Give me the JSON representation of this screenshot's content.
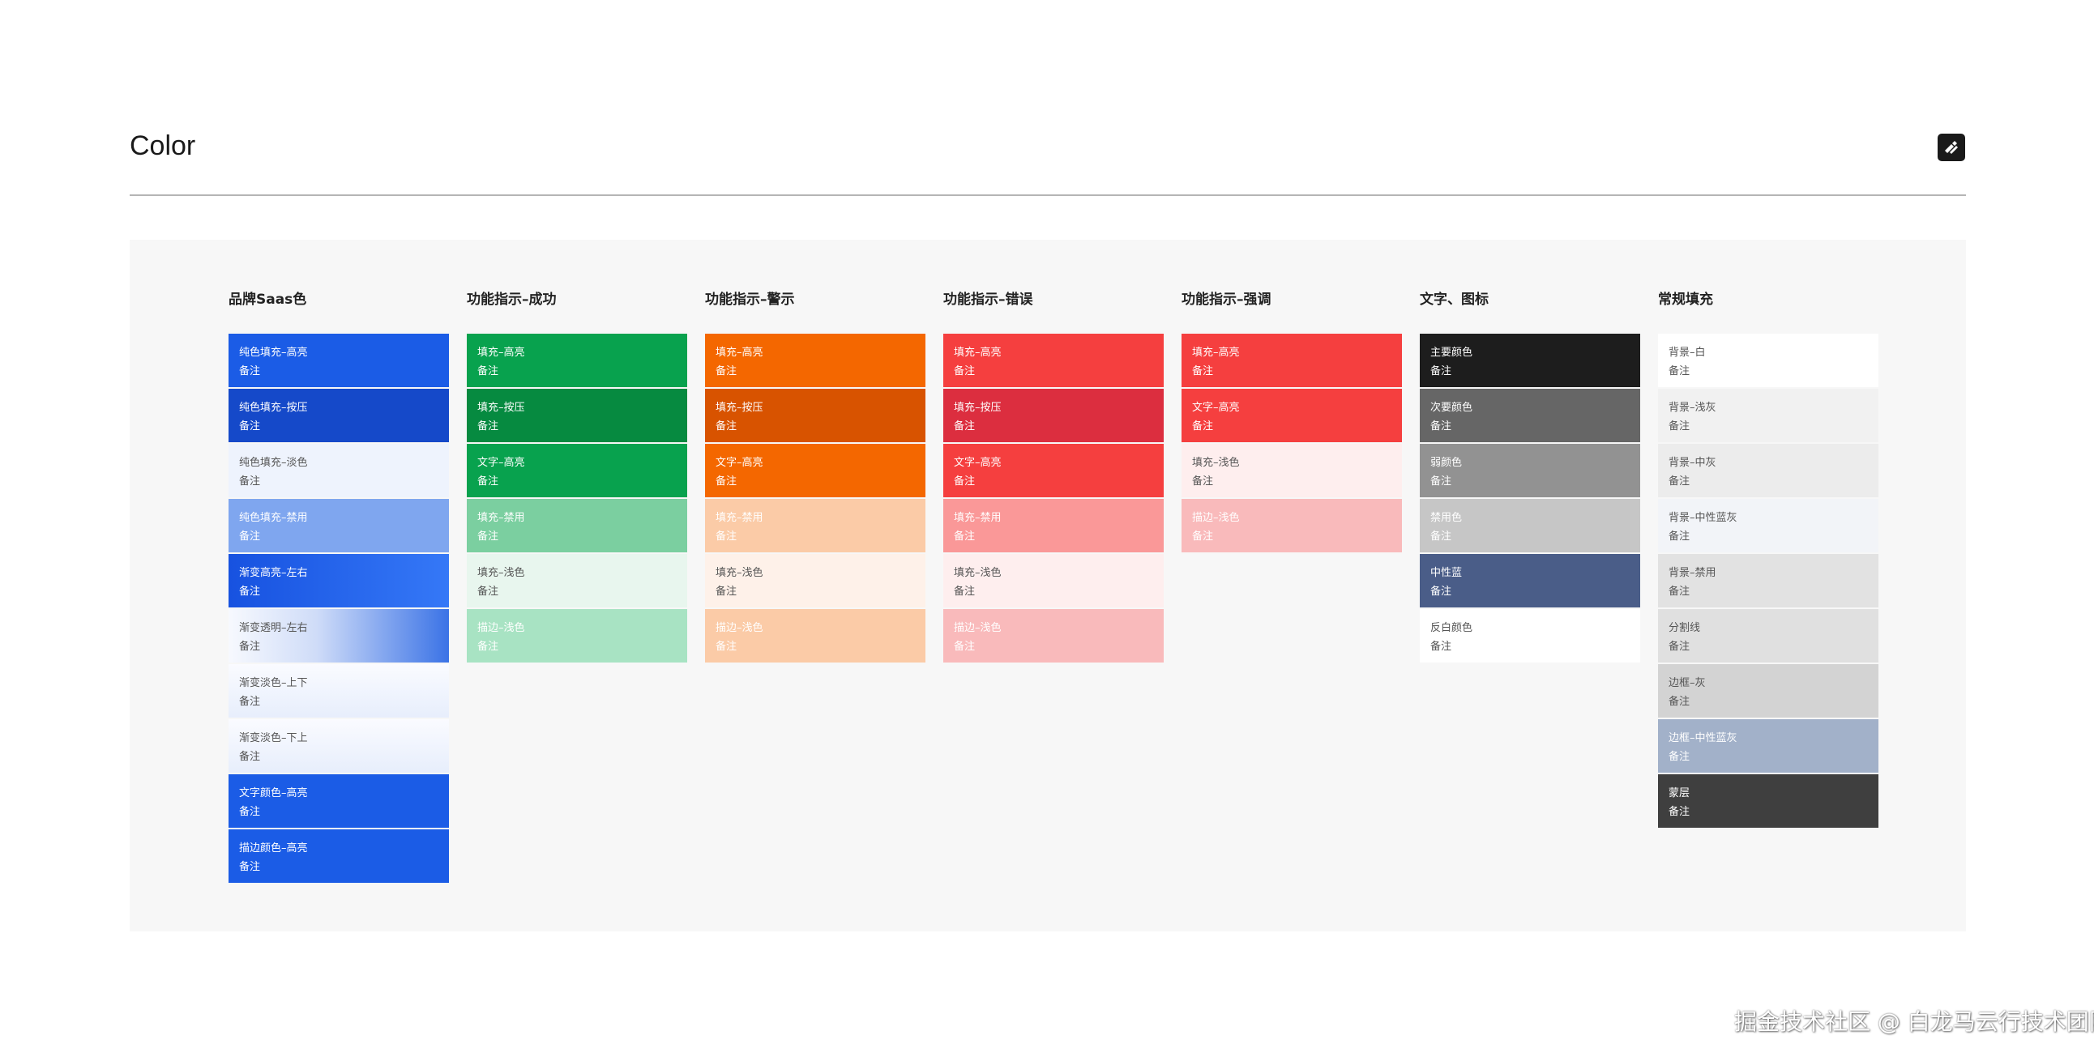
{
  "header": {
    "title": "Color",
    "logo_icon": "edit-logo-icon"
  },
  "watermark": "掘金技术社区 @ 白龙马云行技术团队",
  "columns": [
    {
      "title": "品牌Saas色",
      "swatches": [
        {
          "name": "纯色填充–高亮",
          "note": "备注",
          "color": "#1b5ce6"
        },
        {
          "name": "纯色填充–按压",
          "note": "备注",
          "color": "#1549c9"
        },
        {
          "name": "纯色填充–淡色",
          "note": "备注",
          "color": "#eef3fd",
          "text": "dark"
        },
        {
          "name": "纯色填充–禁用",
          "note": "备注",
          "color": "#7fa6ef"
        },
        {
          "name": "渐变高亮–左右",
          "note": "备注",
          "color": "linear-gradient(90deg, #1752e0 0%, #3578f7 100%)"
        },
        {
          "name": "渐变透明–左右",
          "note": "备注",
          "color": "linear-gradient(90deg, #f7f9fe 0%, #cfdcf8 40%, #3b73e6 100%)",
          "text": "dark"
        },
        {
          "name": "渐变淡色–上下",
          "note": "备注",
          "color": "linear-gradient(180deg, #fafbff 0%, #e7eefc 100%)",
          "text": "dark"
        },
        {
          "name": "渐变淡色–下上",
          "note": "备注",
          "color": "linear-gradient(0deg, #e7eefc 0%, #fafbff 100%)",
          "text": "dark"
        },
        {
          "name": "文字颜色–高亮",
          "note": "备注",
          "color": "#1b5ce6"
        },
        {
          "name": "描边颜色–高亮",
          "note": "备注",
          "color": "#1b5ce6"
        }
      ]
    },
    {
      "title": "功能指示–成功",
      "swatches": [
        {
          "name": "填充–高亮",
          "note": "备注",
          "color": "#08a24e"
        },
        {
          "name": "填充–按压",
          "note": "备注",
          "color": "#068a40"
        },
        {
          "name": "文字–高亮",
          "note": "备注",
          "color": "#08a24e"
        },
        {
          "name": "填充–禁用",
          "note": "备注",
          "color": "#7bcfa0"
        },
        {
          "name": "填充–浅色",
          "note": "备注",
          "color": "#e8f6ee",
          "text": "dark"
        },
        {
          "name": "描边–浅色",
          "note": "备注",
          "color": "#a8e3c3"
        }
      ]
    },
    {
      "title": "功能指示–警示",
      "swatches": [
        {
          "name": "填充–高亮",
          "note": "备注",
          "color": "#f46700"
        },
        {
          "name": "填充–按压",
          "note": "备注",
          "color": "#d85300"
        },
        {
          "name": "文字–高亮",
          "note": "备注",
          "color": "#f46700"
        },
        {
          "name": "填充–禁用",
          "note": "备注",
          "color": "#fbcba7"
        },
        {
          "name": "填充–浅色",
          "note": "备注",
          "color": "#fef1e9",
          "text": "dark"
        },
        {
          "name": "描边–浅色",
          "note": "备注",
          "color": "#fbcba7"
        }
      ]
    },
    {
      "title": "功能指示–错误",
      "swatches": [
        {
          "name": "填充–高亮",
          "note": "备注",
          "color": "#f53f3f"
        },
        {
          "name": "填充–按压",
          "note": "备注",
          "color": "#dc2e3f"
        },
        {
          "name": "文字–高亮",
          "note": "备注",
          "color": "#f53f3f"
        },
        {
          "name": "填充–禁用",
          "note": "备注",
          "color": "#fa9898"
        },
        {
          "name": "填充–浅色",
          "note": "备注",
          "color": "#feeeee",
          "text": "dark"
        },
        {
          "name": "描边–浅色",
          "note": "备注",
          "color": "#f9babb"
        }
      ]
    },
    {
      "title": "功能指示–强调",
      "swatches": [
        {
          "name": "填充–高亮",
          "note": "备注",
          "color": "#f53f3f"
        },
        {
          "name": "文字–高亮",
          "note": "备注",
          "color": "#f53f3f"
        },
        {
          "name": "填充–浅色",
          "note": "备注",
          "color": "#feeeee",
          "text": "dark"
        },
        {
          "name": "描边–浅色",
          "note": "备注",
          "color": "#f9babb"
        }
      ]
    },
    {
      "title": "文字、图标",
      "swatches": [
        {
          "name": "主要颜色",
          "note": "备注",
          "color": "#1d1d1d"
        },
        {
          "name": "次要颜色",
          "note": "备注",
          "color": "#666666"
        },
        {
          "name": "弱颜色",
          "note": "备注",
          "color": "#929292"
        },
        {
          "name": "禁用色",
          "note": "备注",
          "color": "#c6c6c6"
        },
        {
          "name": "中性蓝",
          "note": "备注",
          "color": "#4a5d88"
        },
        {
          "name": "反白颜色",
          "note": "备注",
          "color": "#ffffff",
          "text": "dark"
        }
      ]
    },
    {
      "title": "常规填充",
      "swatches": [
        {
          "name": "背景–白",
          "note": "备注",
          "color": "#ffffff",
          "text": "dark"
        },
        {
          "name": "背景–浅灰",
          "note": "备注",
          "color": "#f1f1f1",
          "text": "dark"
        },
        {
          "name": "背景–中灰",
          "note": "备注",
          "color": "#ececec",
          "text": "dark"
        },
        {
          "name": "背景–中性蓝灰",
          "note": "备注",
          "color": "#f2f4f8",
          "text": "dark"
        },
        {
          "name": "背景–禁用",
          "note": "备注",
          "color": "#e2e2e2",
          "text": "dark"
        },
        {
          "name": "分割线",
          "note": "备注",
          "color": "#e0e0e0",
          "text": "dark"
        },
        {
          "name": "边框–灰",
          "note": "备注",
          "color": "#d3d3d3",
          "text": "dark"
        },
        {
          "name": "边框–中性蓝灰",
          "note": "备注",
          "color": "#a2b1c9"
        },
        {
          "name": "蒙层",
          "note": "备注",
          "color": "#3f3f3f"
        }
      ]
    }
  ]
}
